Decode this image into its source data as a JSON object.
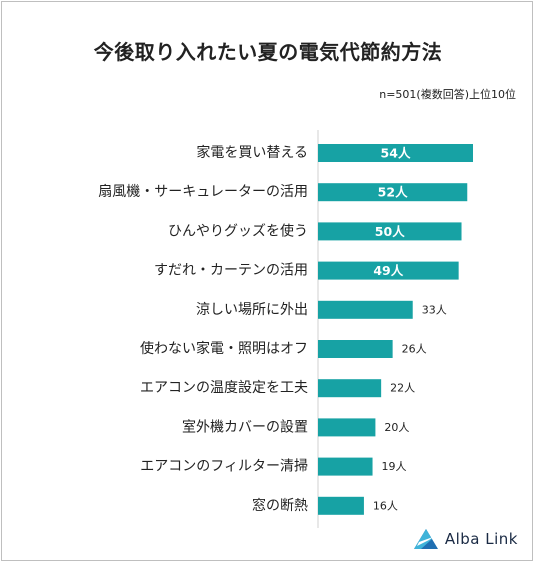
{
  "title": "今後取り入れたい夏の電気代節約方法",
  "note": "n=501(複数回答)上位10位",
  "brand": "Alba Link",
  "colors": {
    "bar": "#17a2a4",
    "axis": "#d0d0d0"
  },
  "chart_data": {
    "type": "bar",
    "orientation": "horizontal",
    "categories": [
      "家電を買い替える",
      "扇風機・サーキュレーターの活用",
      "ひんやりグッズを使う",
      "すだれ・カーテンの活用",
      "涼しい場所に外出",
      "使わない家電・照明はオフ",
      "エアコンの温度設定を工夫",
      "室外機カバーの設置",
      "エアコンのフィルター清掃",
      "窓の断熱"
    ],
    "values": [
      54,
      52,
      50,
      49,
      33,
      26,
      22,
      20,
      19,
      16
    ],
    "value_labels": [
      "54人",
      "52人",
      "50人",
      "49人",
      "33人",
      "26人",
      "22人",
      "20人",
      "19人",
      "16人"
    ],
    "xlim": [
      0,
      54
    ],
    "grid": false,
    "legend": "none"
  }
}
